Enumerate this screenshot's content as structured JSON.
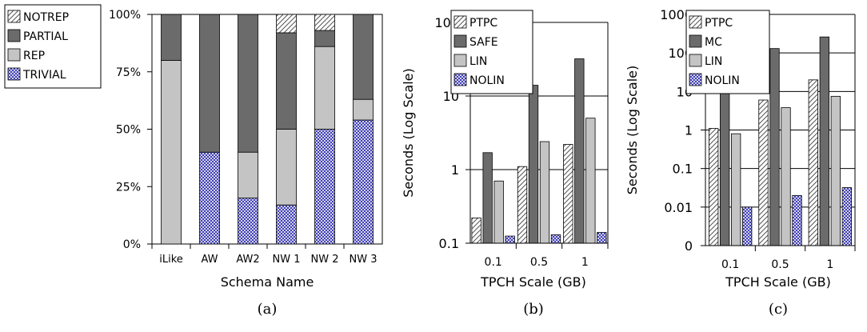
{
  "chart_data": [
    {
      "type": "bar",
      "stacked": true,
      "caption": "(a)",
      "xlabel": "Schema Name",
      "ylabel": "",
      "categories": [
        "iLike",
        "AW",
        "AW2",
        "NW 1",
        "NW 2",
        "NW 3"
      ],
      "yticks": [
        "0%",
        "25%",
        "50%",
        "75%",
        "100%"
      ],
      "ylim": [
        0,
        100
      ],
      "grid": false,
      "legend_position": "top-left",
      "series": [
        {
          "name": "TRIVIAL",
          "pattern": "crosshatch-blue",
          "values": [
            0,
            40,
            20,
            17,
            50,
            54
          ]
        },
        {
          "name": "REP",
          "pattern": "light-gray",
          "values": [
            80,
            0,
            20,
            33,
            36,
            9
          ]
        },
        {
          "name": "PARTIAL",
          "pattern": "dark-gray",
          "values": [
            20,
            60,
            60,
            42,
            7,
            37
          ]
        },
        {
          "name": "NOTREP",
          "pattern": "diagonal-hatch",
          "values": [
            0,
            0,
            0,
            8,
            7,
            0
          ]
        }
      ]
    },
    {
      "type": "bar",
      "log_scale": true,
      "caption": "(b)",
      "xlabel": "TPCH Scale (GB)",
      "ylabel": "Seconds (Log Scale)",
      "categories": [
        "0.1",
        "0.5",
        "1"
      ],
      "yticks": [
        {
          "value": 0.1,
          "label": "0.1"
        },
        {
          "value": 1,
          "label": "1"
        },
        {
          "value": 10,
          "label": "10"
        },
        {
          "value": 100,
          "label": "100"
        }
      ],
      "ylim": [
        0.1,
        100
      ],
      "grid": true,
      "legend_position": "top-left",
      "series": [
        {
          "name": "PTPC",
          "pattern": "diagonal-hatch",
          "values": [
            0.22,
            1.1,
            2.2
          ]
        },
        {
          "name": "SAFE",
          "pattern": "dark-gray",
          "values": [
            1.7,
            14,
            32
          ]
        },
        {
          "name": "LIN",
          "pattern": "light-gray",
          "values": [
            0.7,
            2.4,
            5
          ]
        },
        {
          "name": "NOLIN",
          "pattern": "crosshatch-blue",
          "values": [
            0.125,
            0.13,
            0.14
          ]
        }
      ]
    },
    {
      "type": "bar",
      "log_scale": true,
      "caption": "(c)",
      "xlabel": "TPCH Scale (GB)",
      "ylabel": "Seconds (Log Scale)",
      "categories": [
        "0.1",
        "0.5",
        "1"
      ],
      "yticks": [
        {
          "value": 0.001,
          "label": "0"
        },
        {
          "value": 0.01,
          "label": "0.01"
        },
        {
          "value": 0.1,
          "label": "0.1"
        },
        {
          "value": 1,
          "label": "1"
        },
        {
          "value": 10,
          "label": "10"
        },
        {
          "value": 100,
          "label": "100"
        },
        {
          "value": 1000,
          "label": "1000"
        }
      ],
      "ylim": [
        0.001,
        1000
      ],
      "grid": true,
      "legend_position": "top-left",
      "series": [
        {
          "name": "PTPC",
          "pattern": "diagonal-hatch",
          "values": [
            1.1,
            6,
            20
          ]
        },
        {
          "name": "MC",
          "pattern": "dark-gray",
          "values": [
            10,
            130,
            260
          ]
        },
        {
          "name": "LIN",
          "pattern": "light-gray",
          "values": [
            0.8,
            3.8,
            7.5
          ]
        },
        {
          "name": "NOLIN",
          "pattern": "crosshatch-blue",
          "values": [
            0.01,
            0.02,
            0.032
          ]
        }
      ]
    }
  ],
  "colors": {
    "dark_gray": "#6b6b6b",
    "light_gray": "#c4c4c4",
    "crosshatch_blue": "#2222aa",
    "hatch": "#555555",
    "grid": "#000000"
  }
}
